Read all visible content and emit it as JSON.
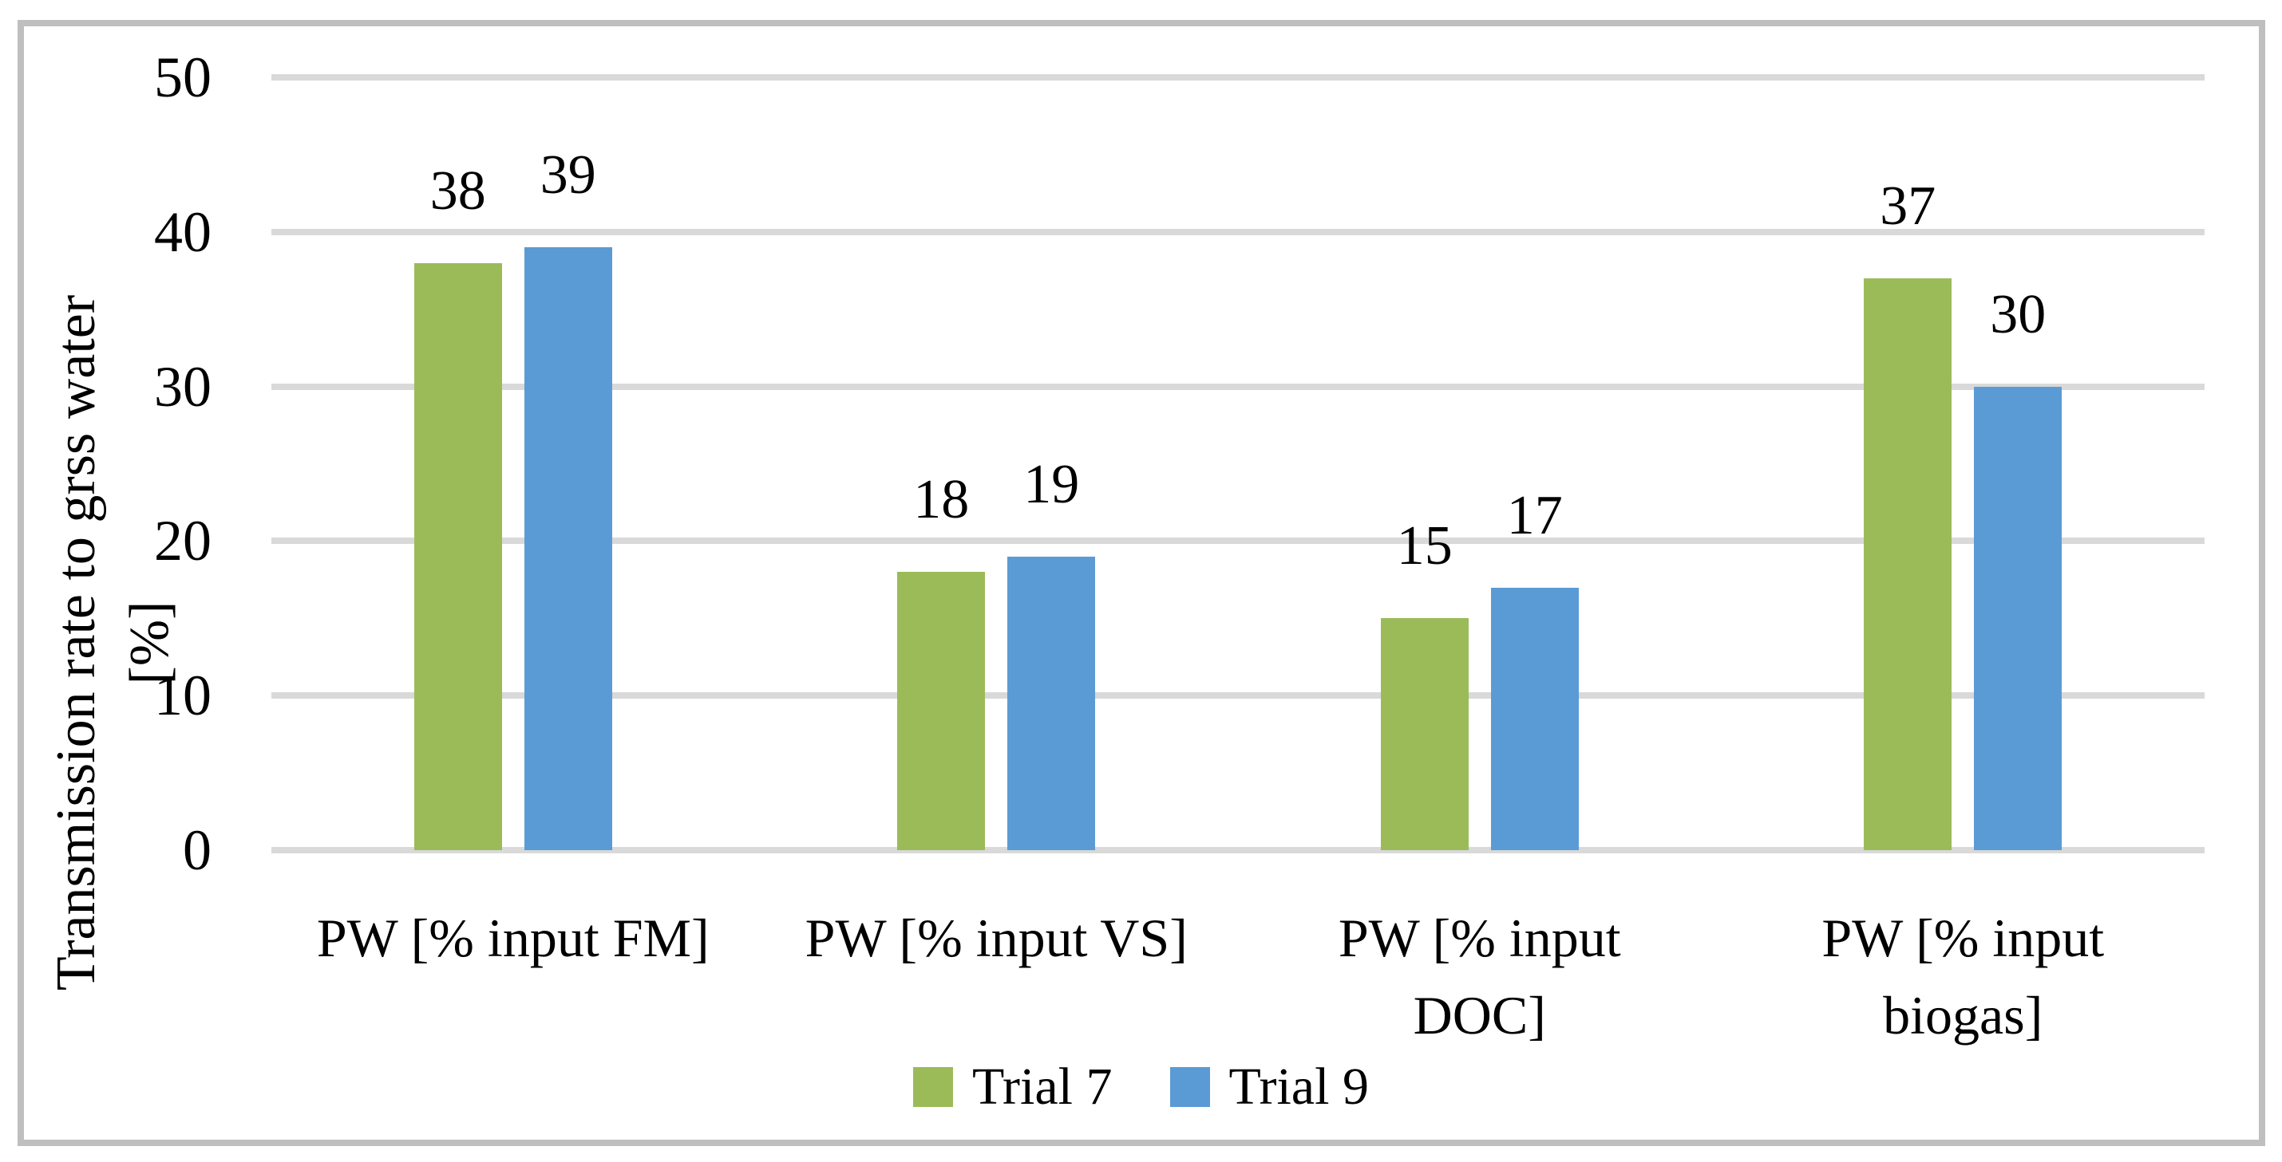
{
  "chart_data": {
    "type": "bar",
    "title": "",
    "xlabel": "",
    "ylabel": "Transmission rate to grss water [%]",
    "ylabel_lines": [
      "Transmission rate to grss water",
      "[%]"
    ],
    "ylim": [
      0,
      50
    ],
    "yticks": [
      0,
      10,
      20,
      30,
      40,
      50
    ],
    "grid": "horizontal gridlines at every 10 units",
    "legend_position": "bottom center",
    "categories": [
      "PW [% input FM]",
      "PW [% input VS]",
      "PW [% input\nDOC]",
      "PW [% input\nbiogas]"
    ],
    "series": [
      {
        "name": "Trial 7",
        "color": "#9BBB59",
        "values": [
          38,
          18,
          15,
          37
        ]
      },
      {
        "name": "Trial 9",
        "color": "#5B9BD5",
        "values": [
          39,
          19,
          17,
          30
        ]
      }
    ],
    "colors": {
      "gridline": "#D9D9D9",
      "frame_border": "#BFBFBF",
      "text": "#000000",
      "background": "#FFFFFF"
    }
  }
}
